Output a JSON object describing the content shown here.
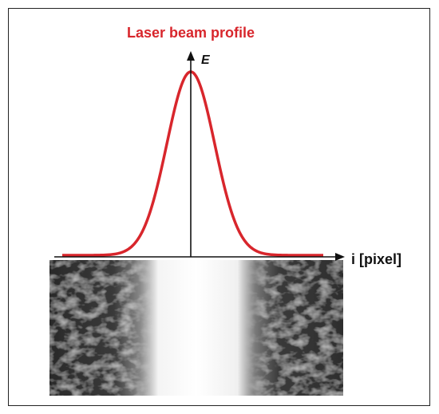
{
  "title": "Laser beam profile",
  "axes": {
    "y_label": "E",
    "x_label": "i [pixel]"
  }
}
